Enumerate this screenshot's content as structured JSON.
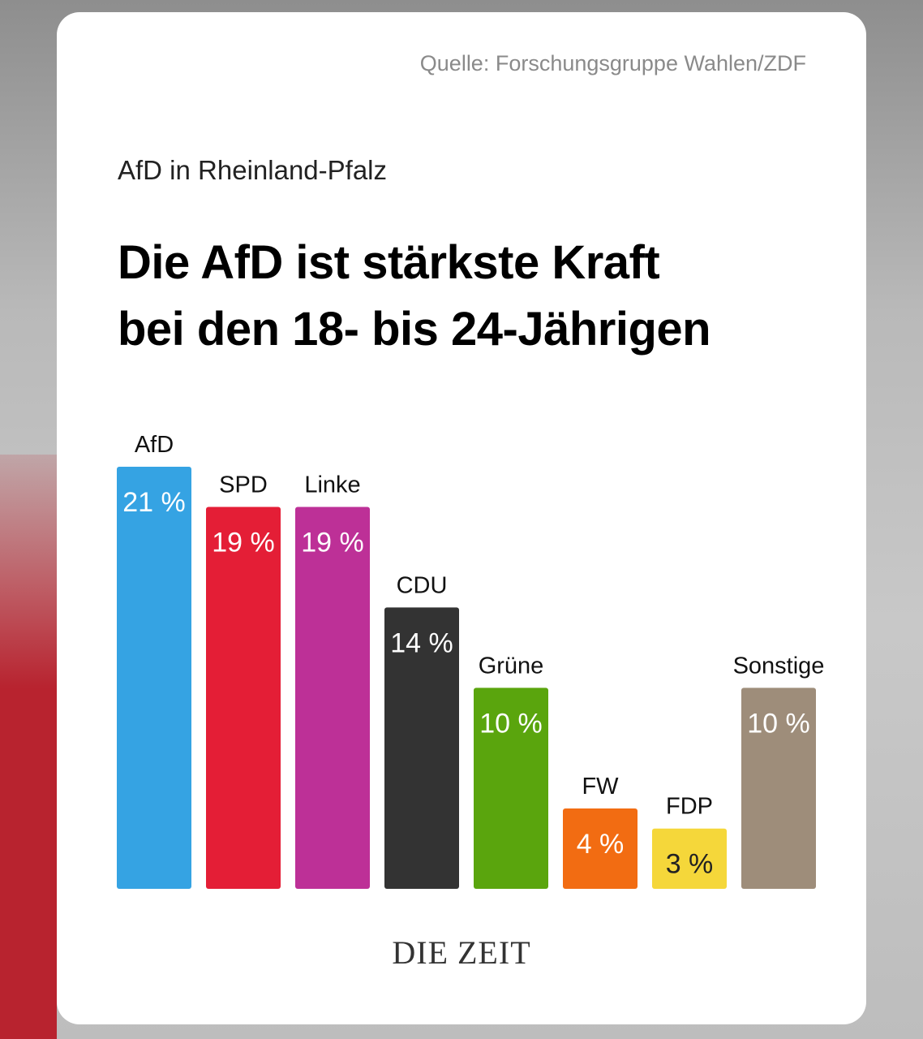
{
  "chart_data": {
    "type": "bar",
    "source": "Quelle: Forschungsgruppe Wahlen/ZDF",
    "subtitle": "AfD in Rheinland-Pfalz",
    "title": "Die AfD ist stärkste Kraft\nbei den 18- bis 24-Jährigen",
    "categories": [
      "AfD",
      "SPD",
      "Linke",
      "CDU",
      "Grüne",
      "FW",
      "FDP",
      "Sonstige"
    ],
    "values": [
      21,
      19,
      19,
      14,
      10,
      4,
      3,
      10
    ],
    "value_labels": [
      "21 %",
      "19 %",
      "19 %",
      "14 %",
      "10 %",
      "4 %",
      "3 %",
      "10 %"
    ],
    "colors": [
      "#35a3e3",
      "#e41e36",
      "#bd3097",
      "#333333",
      "#5aa50d",
      "#f26c12",
      "#f5d73a",
      "#9e8d7a"
    ],
    "logo": "DIE ZEIT"
  }
}
